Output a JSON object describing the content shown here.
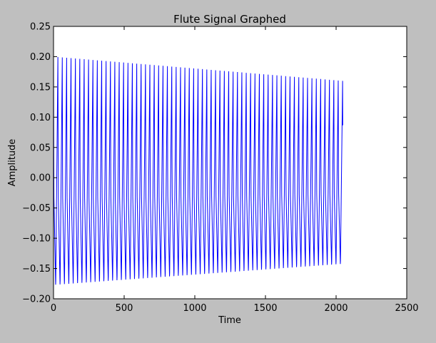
{
  "chart_data": {
    "type": "line",
    "title": "Flute Signal Graphed",
    "xlabel": "Time",
    "ylabel": "Amplitude",
    "xlim": [
      0,
      2500
    ],
    "ylim": [
      -0.2,
      0.25
    ],
    "xticks": [
      0,
      500,
      1000,
      1500,
      2000,
      2500
    ],
    "xtick_labels": [
      "0",
      "500",
      "1000",
      "1500",
      "2000",
      "2500"
    ],
    "yticks": [
      -0.2,
      -0.15,
      -0.1,
      -0.05,
      0.0,
      0.05,
      0.1,
      0.15,
      0.2,
      0.25
    ],
    "ytick_labels": [
      "−0.20",
      "−0.15",
      "−0.10",
      "−0.05",
      "0.00",
      "0.05",
      "0.10",
      "0.15",
      "0.20",
      "0.25"
    ],
    "grid": false,
    "series": [
      {
        "color": "#0000ff",
        "x_range": [
          0,
          2047
        ],
        "period": 31,
        "peaks_start": 0.2,
        "peaks_end": 0.16,
        "troughs_start": -0.183,
        "troughs_end": -0.147
      }
    ],
    "colors": {
      "background": "#bfbfbf",
      "plot_area": "#ffffff",
      "line": "#0000ff"
    }
  }
}
